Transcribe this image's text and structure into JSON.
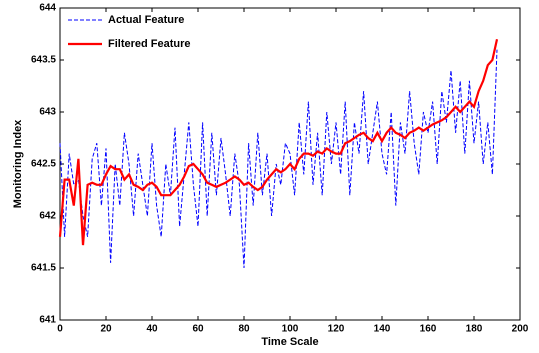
{
  "chart_data": {
    "type": "line",
    "xlabel": "Time Scale",
    "ylabel": "Monitoring Index",
    "x": [
      0,
      2,
      4,
      6,
      8,
      10,
      12,
      14,
      16,
      18,
      20,
      22,
      24,
      26,
      28,
      30,
      32,
      34,
      36,
      38,
      40,
      42,
      44,
      46,
      48,
      50,
      52,
      54,
      56,
      58,
      60,
      62,
      64,
      66,
      68,
      70,
      72,
      74,
      76,
      78,
      80,
      82,
      84,
      86,
      88,
      90,
      92,
      94,
      96,
      98,
      100,
      102,
      104,
      106,
      108,
      110,
      112,
      114,
      116,
      118,
      120,
      122,
      124,
      126,
      128,
      130,
      132,
      134,
      136,
      138,
      140,
      142,
      144,
      146,
      148,
      150,
      152,
      154,
      156,
      158,
      160,
      162,
      164,
      166,
      168,
      170,
      172,
      174,
      176,
      178,
      180,
      182,
      184,
      186,
      188,
      190
    ],
    "series": [
      {
        "name": "Actual Feature",
        "color": "#0000ff",
        "dashed": true,
        "values": [
          642.7,
          641.8,
          642.6,
          642.3,
          642.35,
          642.0,
          641.8,
          642.55,
          642.7,
          642.1,
          642.65,
          641.55,
          642.5,
          642.1,
          642.8,
          642.5,
          642.0,
          642.6,
          642.3,
          642.0,
          642.7,
          642.1,
          641.8,
          642.5,
          642.2,
          642.85,
          641.9,
          642.4,
          642.9,
          642.3,
          641.9,
          642.9,
          642.0,
          642.8,
          642.2,
          642.75,
          642.4,
          642.0,
          642.6,
          642.3,
          641.5,
          642.7,
          642.1,
          642.8,
          642.2,
          642.6,
          642.0,
          642.5,
          642.3,
          642.7,
          642.6,
          642.2,
          642.9,
          642.4,
          643.1,
          642.3,
          642.8,
          642.2,
          643.0,
          642.5,
          642.9,
          642.4,
          643.1,
          642.2,
          642.9,
          642.6,
          643.2,
          642.5,
          642.8,
          643.1,
          642.6,
          642.4,
          643.0,
          642.1,
          642.9,
          642.6,
          643.2,
          642.7,
          642.4,
          643.0,
          642.8,
          643.1,
          642.5,
          643.2,
          642.9,
          643.4,
          642.8,
          643.3,
          642.6,
          643.3,
          642.7,
          643.1,
          642.5,
          642.9,
          642.4,
          643.6
        ]
      },
      {
        "name": "Filtered Feature",
        "color": "#ff0000",
        "dashed": false,
        "values": [
          641.8,
          642.35,
          642.35,
          642.1,
          642.55,
          641.72,
          642.3,
          642.32,
          642.3,
          642.3,
          642.4,
          642.48,
          642.45,
          642.45,
          642.35,
          642.4,
          642.3,
          642.28,
          642.25,
          642.3,
          642.32,
          642.28,
          642.2,
          642.2,
          642.2,
          642.25,
          642.3,
          642.38,
          642.48,
          642.5,
          642.45,
          642.4,
          642.32,
          642.3,
          642.28,
          642.3,
          642.32,
          642.35,
          642.38,
          642.35,
          642.3,
          642.32,
          642.28,
          642.25,
          642.28,
          642.35,
          642.4,
          642.45,
          642.42,
          642.45,
          642.5,
          642.45,
          642.55,
          642.6,
          642.6,
          642.58,
          642.62,
          642.6,
          642.65,
          642.62,
          642.6,
          642.6,
          642.7,
          642.72,
          642.75,
          642.78,
          642.8,
          642.75,
          642.72,
          642.8,
          642.72,
          642.8,
          642.85,
          642.8,
          642.78,
          642.75,
          642.8,
          642.82,
          642.85,
          642.82,
          642.85,
          642.88,
          642.9,
          642.92,
          642.95,
          643.0,
          643.05,
          643.0,
          643.05,
          643.1,
          643.05,
          643.2,
          643.3,
          643.45,
          643.5,
          643.7
        ]
      }
    ],
    "xlim": [
      0,
      200
    ],
    "xticks": [
      0,
      20,
      40,
      60,
      80,
      100,
      120,
      140,
      160,
      180,
      200
    ],
    "ylim": [
      641,
      644
    ],
    "yticks": [
      641,
      641.5,
      642,
      642.5,
      643,
      643.5,
      644
    ],
    "legend": "upper left"
  }
}
